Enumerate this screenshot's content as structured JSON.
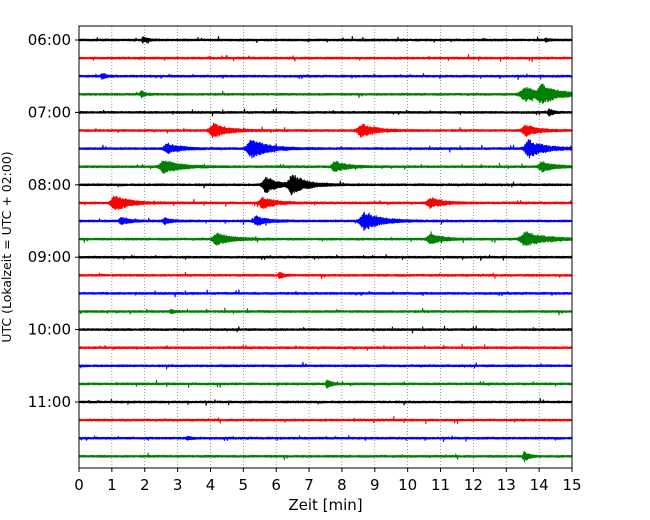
{
  "chart_data": {
    "type": "line",
    "title": "",
    "xlabel": "Zeit  [min]",
    "ylabel": "UTC (Lokalzeit = UTC + 02:00)",
    "xlim": [
      0,
      15
    ],
    "x_ticks": [
      0,
      1,
      2,
      3,
      4,
      5,
      6,
      7,
      8,
      9,
      10,
      11,
      12,
      13,
      14,
      15
    ],
    "y_tick_labels": [
      "06:00",
      "07:00",
      "08:00",
      "09:00",
      "10:00",
      "11:00"
    ],
    "grid": "vertical-dotted",
    "line_colors": [
      "#000000",
      "#ff0000",
      "#0000ff",
      "#008000"
    ],
    "traces": [
      {
        "index": 0,
        "color": "#000000",
        "events": [
          {
            "t": 1.95,
            "amp": 0.3,
            "dur": 0.12
          },
          {
            "t": 14.2,
            "amp": 0.15,
            "dur": 0.1
          }
        ]
      },
      {
        "index": 1,
        "color": "#ff0000",
        "events": []
      },
      {
        "index": 2,
        "color": "#0000ff",
        "events": [
          {
            "t": 0.7,
            "amp": 0.3,
            "dur": 0.12
          }
        ]
      },
      {
        "index": 3,
        "color": "#008000",
        "events": [
          {
            "t": 1.9,
            "amp": 0.35,
            "dur": 0.12
          },
          {
            "t": 13.6,
            "amp": 0.7,
            "dur": 0.55
          },
          {
            "t": 14.1,
            "amp": 0.8,
            "dur": 0.45
          }
        ]
      },
      {
        "index": 4,
        "color": "#000000",
        "events": [
          {
            "t": 14.3,
            "amp": 0.45,
            "dur": 0.1
          }
        ]
      },
      {
        "index": 5,
        "color": "#ff0000",
        "events": [
          {
            "t": 4.1,
            "amp": 0.75,
            "dur": 0.4
          },
          {
            "t": 8.6,
            "amp": 0.7,
            "dur": 0.4
          },
          {
            "t": 13.6,
            "amp": 0.6,
            "dur": 0.35
          }
        ]
      },
      {
        "index": 6,
        "color": "#0000ff",
        "events": [
          {
            "t": 2.7,
            "amp": 0.55,
            "dur": 0.35
          },
          {
            "t": 5.25,
            "amp": 1.05,
            "dur": 0.45
          },
          {
            "t": 13.7,
            "amp": 0.95,
            "dur": 0.45
          }
        ]
      },
      {
        "index": 7,
        "color": "#008000",
        "events": [
          {
            "t": 2.6,
            "amp": 0.7,
            "dur": 0.45
          },
          {
            "t": 7.8,
            "amp": 0.55,
            "dur": 0.35
          },
          {
            "t": 14.1,
            "amp": 0.5,
            "dur": 0.35
          }
        ]
      },
      {
        "index": 8,
        "color": "#000000",
        "events": [
          {
            "t": 5.7,
            "amp": 0.85,
            "dur": 0.35
          },
          {
            "t": 6.5,
            "amp": 1.05,
            "dur": 0.4
          }
        ]
      },
      {
        "index": 9,
        "color": "#ff0000",
        "events": [
          {
            "t": 1.1,
            "amp": 0.85,
            "dur": 0.4
          },
          {
            "t": 5.6,
            "amp": 0.6,
            "dur": 0.35
          },
          {
            "t": 10.7,
            "amp": 0.55,
            "dur": 0.35
          }
        ]
      },
      {
        "index": 10,
        "color": "#0000ff",
        "events": [
          {
            "t": 1.3,
            "amp": 0.35,
            "dur": 0.25
          },
          {
            "t": 2.6,
            "amp": 0.3,
            "dur": 0.2
          },
          {
            "t": 5.4,
            "amp": 0.5,
            "dur": 0.3
          },
          {
            "t": 8.7,
            "amp": 1.05,
            "dur": 0.45
          }
        ]
      },
      {
        "index": 11,
        "color": "#008000",
        "events": [
          {
            "t": 4.2,
            "amp": 0.65,
            "dur": 0.4
          },
          {
            "t": 10.7,
            "amp": 0.5,
            "dur": 0.35
          },
          {
            "t": 13.6,
            "amp": 0.75,
            "dur": 0.55
          }
        ]
      },
      {
        "index": 12,
        "color": "#000000",
        "events": []
      },
      {
        "index": 13,
        "color": "#ff0000",
        "events": [
          {
            "t": 6.1,
            "amp": 0.35,
            "dur": 0.12
          }
        ]
      },
      {
        "index": 14,
        "color": "#0000ff",
        "events": []
      },
      {
        "index": 15,
        "color": "#008000",
        "events": [
          {
            "t": 2.8,
            "amp": 0.2,
            "dur": 0.1
          }
        ]
      },
      {
        "index": 16,
        "color": "#000000",
        "events": []
      },
      {
        "index": 17,
        "color": "#ff0000",
        "events": []
      },
      {
        "index": 18,
        "color": "#0000ff",
        "events": []
      },
      {
        "index": 19,
        "color": "#008000",
        "events": [
          {
            "t": 7.55,
            "amp": 0.5,
            "dur": 0.12
          }
        ]
      },
      {
        "index": 20,
        "color": "#000000",
        "events": []
      },
      {
        "index": 21,
        "color": "#ff0000",
        "events": []
      },
      {
        "index": 22,
        "color": "#0000ff",
        "events": [
          {
            "t": 3.3,
            "amp": 0.15,
            "dur": 0.15
          }
        ]
      },
      {
        "index": 23,
        "color": "#008000",
        "events": [
          {
            "t": 13.55,
            "amp": 0.6,
            "dur": 0.12
          }
        ]
      }
    ]
  }
}
